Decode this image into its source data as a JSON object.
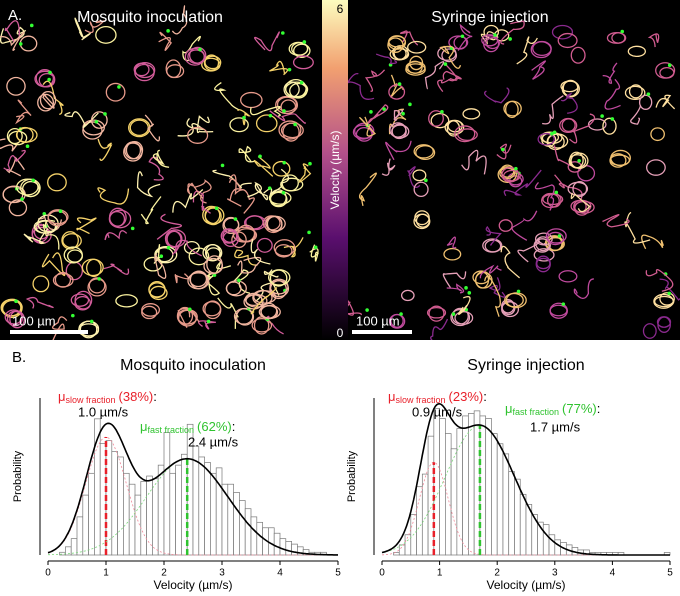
{
  "panel_a": {
    "label": "A.",
    "images": [
      {
        "title": "Mosquito inoculation",
        "scale_bar": "100 µm"
      },
      {
        "title": "Syringe injection",
        "scale_bar": "100 µm"
      }
    ],
    "colorbar": {
      "label": "Velocity (µm/s)",
      "lim": [
        0,
        6
      ],
      "ticks": [
        6,
        0
      ]
    }
  },
  "panel_b": {
    "label": "B."
  },
  "chart_data": [
    {
      "type": "histogram",
      "title": "Mosquito inoculation",
      "xlabel": "Velocity (µm/s)",
      "ylabel": "Probability",
      "bins": [
        0,
        0.1,
        0.2,
        0.3,
        0.4,
        0.5,
        0.6,
        0.7,
        0.8,
        0.9,
        1.0,
        1.1,
        1.2,
        1.3,
        1.4,
        1.5,
        1.6,
        1.7,
        1.8,
        1.9,
        2.0,
        2.1,
        2.2,
        2.3,
        2.4,
        2.5,
        2.6,
        2.7,
        2.8,
        2.9,
        3.0,
        3.1,
        3.2,
        3.3,
        3.4,
        3.5,
        3.6,
        3.7,
        3.8,
        3.9,
        4.0,
        4.1,
        4.2,
        4.3,
        4.4,
        4.5,
        4.6,
        4.7,
        4.8,
        4.9,
        5.0
      ],
      "counts": [
        0,
        0,
        0.01,
        0.03,
        0.06,
        0.14,
        0.22,
        0.3,
        0.5,
        0.41,
        0.42,
        0.38,
        0.36,
        0.3,
        0.26,
        0.22,
        0.27,
        0.29,
        0.28,
        0.33,
        0.45,
        0.3,
        0.33,
        0.37,
        0.48,
        0.4,
        0.36,
        0.34,
        0.3,
        0.32,
        0.26,
        0.26,
        0.23,
        0.2,
        0.17,
        0.14,
        0.12,
        0.1,
        0.1,
        0.08,
        0.06,
        0.05,
        0.04,
        0.03,
        0.02,
        0.01,
        0.01,
        0.01,
        0,
        0
      ],
      "xlim": [
        0,
        5
      ],
      "xticks": [
        0,
        1,
        2,
        3,
        4,
        5
      ],
      "ylim": [
        0,
        0.65
      ],
      "components": [
        {
          "symbol": "μ",
          "subscript": "slow fraction",
          "weight": 38,
          "weight_label": "(38%)",
          "suffix": ":",
          "mean": 1.0,
          "mean_label": "1.0 µm/s",
          "sd": 0.35,
          "color": "#e8202a",
          "curve_color": "#f08a9a"
        },
        {
          "symbol": "μ",
          "subscript": "fast fraction",
          "weight": 62,
          "weight_label": "(62%)",
          "suffix": ":",
          "mean": 2.4,
          "mean_label": "2.4 µm/s",
          "sd": 0.7,
          "color": "#2fc32f",
          "curve_color": "#7ad87a"
        }
      ]
    },
    {
      "type": "histogram",
      "title": "Syringe injection",
      "xlabel": "Velocity (µm/s)",
      "ylabel": "Probability",
      "bins": [
        0,
        0.1,
        0.2,
        0.3,
        0.4,
        0.5,
        0.6,
        0.7,
        0.8,
        0.9,
        1.0,
        1.1,
        1.2,
        1.3,
        1.4,
        1.5,
        1.6,
        1.7,
        1.8,
        1.9,
        2.0,
        2.1,
        2.2,
        2.3,
        2.4,
        2.5,
        2.6,
        2.7,
        2.8,
        2.9,
        3.0,
        3.1,
        3.2,
        3.3,
        3.4,
        3.5,
        3.6,
        3.7,
        3.8,
        3.9,
        4.0,
        4.1,
        4.2,
        4.3,
        4.4,
        4.5,
        4.6,
        4.7,
        4.8,
        4.9,
        5.0
      ],
      "counts": [
        0,
        0,
        0.01,
        0.04,
        0.08,
        0.16,
        0.27,
        0.32,
        0.47,
        0.58,
        0.54,
        0.48,
        0.42,
        0.5,
        0.55,
        0.56,
        0.57,
        0.55,
        0.54,
        0.48,
        0.44,
        0.4,
        0.33,
        0.3,
        0.24,
        0.2,
        0.16,
        0.13,
        0.12,
        0.08,
        0.06,
        0.05,
        0.04,
        0.03,
        0.02,
        0.02,
        0.01,
        0.01,
        0.01,
        0.01,
        0.01,
        0.01,
        0,
        0,
        0,
        0,
        0,
        0,
        0,
        0.01
      ],
      "xlim": [
        0,
        5
      ],
      "xticks": [
        0,
        1,
        2,
        3,
        4,
        5
      ],
      "ylim": [
        0,
        0.7
      ],
      "components": [
        {
          "symbol": "μ",
          "subscript": "slow fraction",
          "weight": 23,
          "weight_label": "(23%)",
          "suffix": ":",
          "mean": 0.9,
          "mean_label": "0.9 µm/s",
          "sd": 0.25,
          "color": "#e8202a",
          "curve_color": "#f08a9a"
        },
        {
          "symbol": "μ",
          "subscript": "fast fraction",
          "weight": 77,
          "weight_label": "(77%)",
          "suffix": ":",
          "mean": 1.7,
          "mean_label": "1.7 µm/s",
          "sd": 0.6,
          "color": "#2fc32f",
          "curve_color": "#7ad87a"
        }
      ]
    }
  ]
}
